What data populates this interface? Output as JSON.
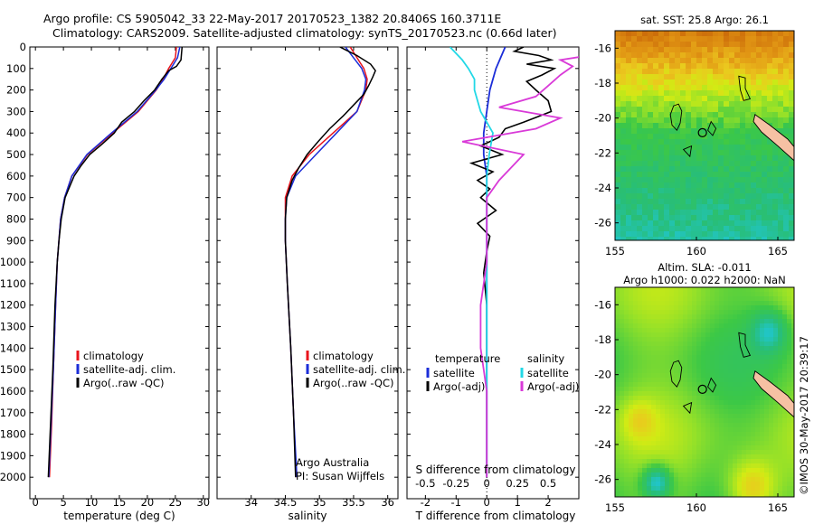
{
  "title": {
    "line1": "Argo profile: CS 5905042_33 22-May-2017 20170523_1382 20.8406S 160.3711E",
    "line2": "Climatology: CARS2009. Satellite-adjusted climatology: synTS_20170523.nc (0.66d later)"
  },
  "credit": "©IMOS 30-May-2017 20:39:17",
  "colors": {
    "clim": "#e8141c",
    "sat": "#1b2dd8",
    "argo": "#000000",
    "sat_s": "#22d8e6",
    "argo_s": "#d93ad8"
  },
  "chart_data": [
    {
      "id": "temperature",
      "type": "line",
      "xlabel": "temperature (deg C)",
      "ylabel": "",
      "xlim": [
        -1,
        31
      ],
      "ylim": [
        2100,
        0
      ],
      "xticks": [
        "0",
        "5",
        "10",
        "15",
        "20",
        "25",
        "30"
      ],
      "yticks": [
        "0",
        "100",
        "200",
        "300",
        "400",
        "500",
        "600",
        "700",
        "800",
        "900",
        "1000",
        "1100",
        "1200",
        "1300",
        "1400",
        "1500",
        "1600",
        "1700",
        "1800",
        "1900",
        "2000"
      ],
      "legend": [
        "climatology",
        "satellite-adj. clim.",
        "Argo(..raw -QC)"
      ],
      "series": [
        {
          "name": "climatology",
          "depth": [
            0,
            50,
            100,
            150,
            200,
            300,
            400,
            500,
            600,
            700,
            800,
            1000,
            1200,
            1500,
            1750,
            2000
          ],
          "values": [
            25.2,
            25.0,
            23.8,
            22.8,
            21.6,
            18.4,
            13.8,
            9.3,
            6.5,
            5.2,
            4.5,
            3.9,
            3.6,
            3.2,
            2.9,
            2.5
          ]
        },
        {
          "name": "satellite-adj. clim.",
          "depth": [
            0,
            50,
            100,
            150,
            200,
            300,
            400,
            500,
            600,
            700,
            800,
            1000,
            1200,
            1500,
            1750,
            2000
          ],
          "values": [
            25.8,
            25.4,
            24.2,
            23.0,
            21.5,
            18.2,
            13.6,
            9.2,
            6.5,
            5.2,
            4.5,
            3.9,
            3.6,
            3.2,
            2.8,
            2.4
          ]
        },
        {
          "name": "Argo(..raw -QC)",
          "depth": [
            0,
            30,
            60,
            90,
            110,
            150,
            200,
            250,
            300,
            350,
            400,
            450,
            500,
            550,
            600,
            650,
            700,
            800,
            900,
            1000,
            1200,
            1500,
            1750,
            2000
          ],
          "values": [
            26.2,
            26.1,
            26.0,
            25.2,
            23.8,
            22.6,
            21.3,
            19.4,
            17.7,
            15.4,
            14.1,
            12.0,
            9.7,
            8.2,
            6.9,
            6.1,
            5.3,
            4.6,
            4.2,
            3.9,
            3.5,
            3.1,
            2.7,
            2.3
          ]
        }
      ]
    },
    {
      "id": "salinity",
      "type": "line",
      "xlabel": "salinity",
      "ylabel": "",
      "xlim": [
        33.5,
        36.15
      ],
      "ylim": [
        2100,
        0
      ],
      "xticks": [
        "34",
        "34.5",
        "35",
        "35.5",
        "36"
      ],
      "legend": [
        "climatology",
        "satellite-adj. clim.",
        "Argo(..raw -QC)"
      ],
      "annotation": [
        "Argo Australia",
        "PI: Susan Wijffels"
      ],
      "series": [
        {
          "name": "climatology",
          "depth": [
            0,
            50,
            100,
            150,
            200,
            300,
            400,
            500,
            600,
            700,
            800,
            900,
            1100,
            1400,
            1700,
            2000
          ],
          "values": [
            35.45,
            35.55,
            35.65,
            35.7,
            35.68,
            35.55,
            35.2,
            34.85,
            34.6,
            34.5,
            34.5,
            34.5,
            34.53,
            34.58,
            34.62,
            34.66
          ]
        },
        {
          "name": "satellite-adj. clim.",
          "depth": [
            0,
            50,
            100,
            150,
            200,
            300,
            400,
            500,
            600,
            700,
            800,
            900,
            1100,
            1400,
            1700,
            2000
          ],
          "values": [
            35.38,
            35.5,
            35.62,
            35.68,
            35.66,
            35.55,
            35.25,
            34.95,
            34.65,
            34.52,
            34.5,
            34.5,
            34.53,
            34.58,
            34.62,
            34.67
          ]
        },
        {
          "name": "Argo(..raw -QC)",
          "depth": [
            0,
            40,
            80,
            110,
            140,
            180,
            220,
            270,
            320,
            380,
            440,
            500,
            560,
            620,
            700,
            800,
            900,
            1100,
            1400,
            1700,
            2000
          ],
          "values": [
            35.3,
            35.55,
            35.75,
            35.82,
            35.78,
            35.72,
            35.65,
            35.5,
            35.35,
            35.15,
            34.98,
            34.82,
            34.7,
            34.6,
            34.52,
            34.5,
            34.5,
            34.53,
            34.58,
            34.62,
            34.65
          ]
        }
      ]
    },
    {
      "id": "difference",
      "type": "line",
      "xlabel": "T difference from climatology",
      "xlabel_top": "S difference from climatology",
      "xlim": [
        -2.6,
        3.0
      ],
      "ylim": [
        2100,
        0
      ],
      "xticks": [
        "-2",
        "-1",
        "0",
        "1",
        "2"
      ],
      "xticks_s": [
        "-0.5",
        "-0.25",
        "0",
        "0.25",
        "0.5"
      ],
      "legend_left_title": "temperature",
      "legend_right_title": "salinity",
      "legend": [
        "satellite",
        "Argo(-adj)",
        "satellite",
        "Argo(-adj)"
      ],
      "series": [
        {
          "name": "temperature satellite",
          "depth": [
            0,
            50,
            100,
            200,
            300,
            400,
            500,
            600,
            700,
            800,
            1000,
            1200,
            1500,
            2000
          ],
          "values": [
            0.6,
            0.45,
            0.3,
            0.1,
            0.0,
            -0.1,
            -0.1,
            0.0,
            0.0,
            0.0,
            0.0,
            0.0,
            0.0,
            0.0
          ]
        },
        {
          "name": "temperature Argo(-adj)",
          "depth": [
            0,
            20,
            40,
            60,
            80,
            100,
            130,
            160,
            200,
            250,
            300,
            350,
            380,
            420,
            460,
            500,
            540,
            580,
            620,
            660,
            700,
            760,
            820,
            880,
            950,
            1050,
            1200,
            1400,
            1600,
            1800,
            2000
          ],
          "values": [
            1.2,
            0.9,
            1.7,
            2.1,
            1.3,
            2.2,
            1.8,
            1.3,
            1.6,
            2.0,
            2.1,
            1.2,
            0.6,
            0.4,
            -0.2,
            0.5,
            -0.5,
            0.2,
            -0.3,
            0.1,
            -0.2,
            0.3,
            -0.3,
            0.1,
            0.0,
            -0.1,
            0.0,
            0.0,
            0.0,
            0.0,
            0.0
          ]
        },
        {
          "name": "salinity satellite",
          "depth": [
            0,
            30,
            60,
            100,
            150,
            200,
            300,
            400,
            500,
            600,
            700,
            800,
            1000,
            1300,
            1600,
            1900,
            1990
          ],
          "values": [
            -0.3,
            -0.25,
            -0.2,
            -0.15,
            -0.1,
            -0.1,
            -0.05,
            0.05,
            0.02,
            0.0,
            0.0,
            0.0,
            0.0,
            0.0,
            0.0,
            0.0,
            0.0
          ]
        },
        {
          "name": "salinity Argo(-adj)",
          "depth": [
            0,
            30,
            60,
            90,
            130,
            180,
            230,
            280,
            330,
            380,
            440,
            500,
            560,
            620,
            700,
            800,
            1000,
            1200,
            1400,
            1600,
            1800,
            2000
          ],
          "values": [
            0.75,
            0.95,
            0.6,
            0.7,
            0.6,
            0.5,
            0.4,
            0.1,
            0.6,
            0.4,
            -0.2,
            0.3,
            0.2,
            0.1,
            0.0,
            0.0,
            0.0,
            -0.05,
            -0.05,
            0.0,
            0.0,
            0.0
          ]
        }
      ]
    },
    {
      "id": "sst_map",
      "type": "heatmap",
      "title": "sat. SST: 25.8 Argo: 26.1",
      "xlim": [
        155,
        166
      ],
      "ylim": [
        -27,
        -15
      ],
      "xticks": [
        "155",
        "160",
        "165"
      ],
      "yticks": [
        "-16",
        "-18",
        "-20",
        "-22",
        "-24",
        "-26"
      ],
      "float_position": {
        "lon": 160.37,
        "lat": -20.84
      }
    },
    {
      "id": "sla_map",
      "type": "heatmap",
      "title": "Altim. SLA: -0.011",
      "subtitle": "Argo h1000: 0.022 h2000: NaN",
      "xlim": [
        155,
        166
      ],
      "ylim": [
        -27,
        -15
      ],
      "xticks": [
        "155",
        "160",
        "165"
      ],
      "yticks": [
        "-16",
        "-18",
        "-20",
        "-22",
        "-24",
        "-26"
      ],
      "float_position": {
        "lon": 160.37,
        "lat": -20.84
      }
    }
  ]
}
